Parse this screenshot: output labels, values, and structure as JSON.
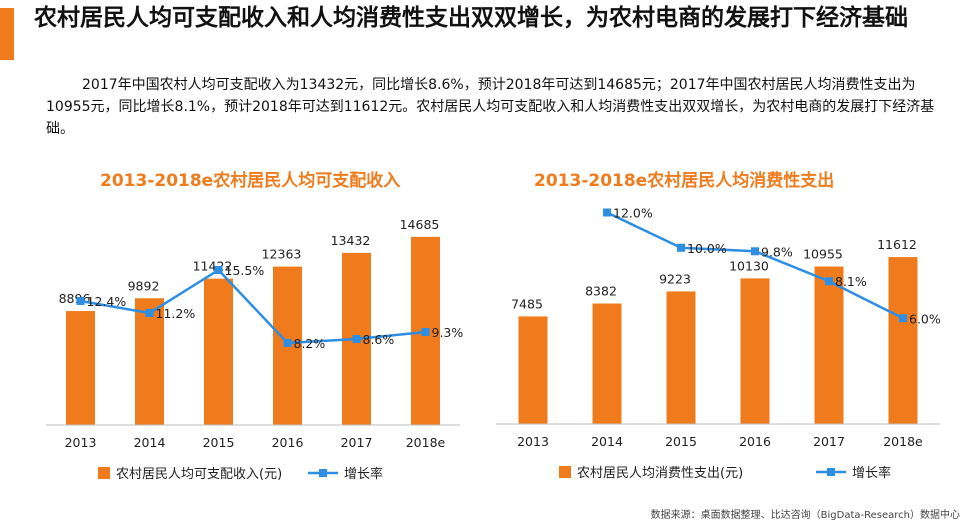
{
  "header": {
    "title": "农村居民人均可支配收入和人均消费性支出双双增长，为农村电商的发展打下经济基础",
    "summary": "2017年中国农村人均可支配收入为13432元，同比增长8.6%，预计2018年可达到14685元；2017年中国农村居民人均消费性支出为10955元，同比增长8.1%，预计2018年可达到11612元。农村居民人均可支配收入和人均消费性支出双双增长，为农村电商的发展打下经济基础。"
  },
  "colors": {
    "bar": "#f07b1c",
    "line": "#2d8ee3",
    "accent": "#f07b1c"
  },
  "chart_data": [
    {
      "type": "bar",
      "title": "2013-2018e农村居民人均可支配收入",
      "categories": [
        "2013",
        "2014",
        "2015",
        "2016",
        "2017",
        "2018e"
      ],
      "series": [
        {
          "name": "农村居民人均可支配收入(元)",
          "type": "bar",
          "values": [
            8896,
            9892,
            11422,
            12363,
            13432,
            14685
          ],
          "labels": [
            "8896",
            "9892",
            "11422",
            "12363",
            "13432",
            "14685"
          ]
        },
        {
          "name": "增长率",
          "type": "line",
          "values": [
            12.4,
            11.2,
            15.5,
            8.2,
            8.6,
            9.3
          ],
          "labels": [
            "12.4%",
            "11.2%",
            "15.5%",
            "8.2%",
            "8.6%",
            "9.3%"
          ]
        }
      ],
      "ylim": [
        0,
        16000
      ],
      "y2lim": [
        0,
        25
      ],
      "legend": "bottom"
    },
    {
      "type": "bar",
      "title": "2013-2018e农村居民人均消费性支出",
      "categories": [
        "2013",
        "2014",
        "2015",
        "2016",
        "2017",
        "2018e"
      ],
      "series": [
        {
          "name": "农村居民人均消费性支出(元)",
          "type": "bar",
          "values": [
            7485,
            8382,
            9223,
            10130,
            10955,
            11612
          ],
          "labels": [
            "7485",
            "8382",
            "9223",
            "10130",
            "10955",
            "11612"
          ]
        },
        {
          "name": "增长率",
          "type": "line",
          "values": [
            null,
            12.0,
            10.0,
            9.8,
            8.1,
            6.0
          ],
          "labels": [
            "",
            "12.0%",
            "10.0%",
            "9.8%",
            "8.1%",
            "6.0%"
          ]
        }
      ],
      "ylim": [
        0,
        16000
      ],
      "y2lim": [
        0,
        16
      ],
      "legend": "bottom"
    }
  ],
  "footer": {
    "source": "数据来源：桌面数据整理、比达咨询（BigData-Research）数据中心"
  }
}
